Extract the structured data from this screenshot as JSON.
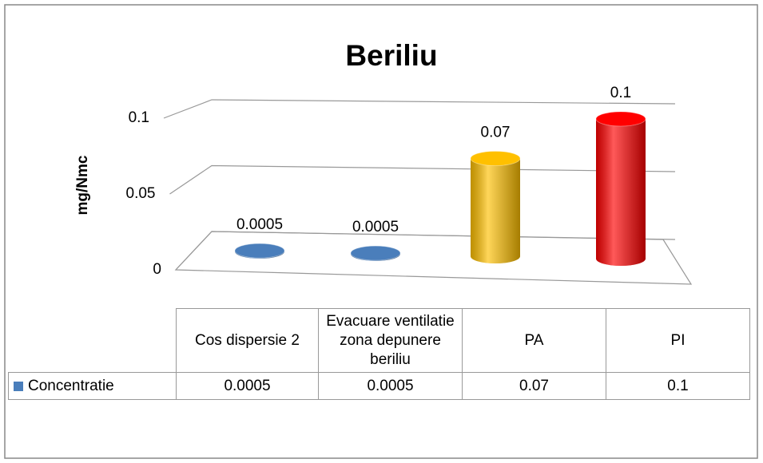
{
  "chart_data": {
    "type": "bar",
    "title": "Beriliu",
    "y_label": "mg/Nmc",
    "categories": [
      "Cos dispersie 2",
      "Evacuare ventilatie zona depunere beriliu",
      "PA",
      "PI"
    ],
    "series": [
      {
        "name": "Concentratie",
        "color": "#4a7ebb",
        "values": [
          0.0005,
          0.0005,
          0.07,
          0.1
        ]
      }
    ],
    "point_colors": [
      "#4a7ebb",
      "#4a7ebb",
      "#ffc000",
      "#ff0000"
    ],
    "ylim": [
      0,
      0.1
    ],
    "yticks": [
      0,
      0.05,
      0.1
    ],
    "grid": true
  }
}
